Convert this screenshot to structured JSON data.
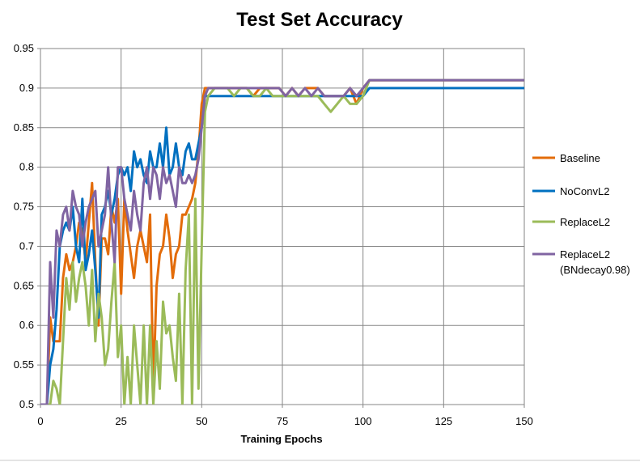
{
  "chart_data": {
    "type": "line",
    "title": "Test Set Accuracy",
    "xlabel": "Training Epochs",
    "ylabel": "",
    "xlim": [
      0,
      150
    ],
    "ylim": [
      0.5,
      0.95
    ],
    "x_ticks": [
      0,
      25,
      50,
      75,
      100,
      125,
      150
    ],
    "x_tick_labels": [
      "0",
      "25",
      "50",
      "75",
      "100",
      "125",
      "150"
    ],
    "y_ticks": [
      0.5,
      0.55,
      0.6,
      0.65,
      0.7,
      0.75,
      0.8,
      0.85,
      0.9,
      0.95
    ],
    "y_tick_labels": [
      "0.5",
      "0.55",
      "0.6",
      "0.65",
      "0.7",
      "0.75",
      "0.8",
      "0.85",
      "0.9",
      "0.95"
    ],
    "grid": true,
    "legend_position": "right",
    "series": [
      {
        "name": "Baseline",
        "color": "#E36C0A",
        "x": [
          0,
          2,
          3,
          4,
          5,
          6,
          7,
          8,
          9,
          10,
          11,
          12,
          13,
          14,
          15,
          16,
          17,
          18,
          19,
          20,
          21,
          22,
          23,
          24,
          25,
          26,
          27,
          28,
          29,
          30,
          31,
          32,
          33,
          34,
          35,
          36,
          37,
          38,
          39,
          40,
          41,
          42,
          43,
          44,
          45,
          46,
          47,
          48,
          49,
          50,
          51,
          52,
          54,
          56,
          58,
          60,
          62,
          64,
          66,
          68,
          70,
          72,
          74,
          76,
          78,
          80,
          82,
          84,
          86,
          88,
          90,
          92,
          94,
          96,
          98,
          100,
          102,
          105,
          110,
          115,
          120,
          125,
          130,
          135,
          140,
          145,
          150
        ],
        "values": [
          0.5,
          0.5,
          0.61,
          0.58,
          0.58,
          0.58,
          0.66,
          0.69,
          0.67,
          0.68,
          0.7,
          0.73,
          0.72,
          0.68,
          0.73,
          0.78,
          0.68,
          0.6,
          0.71,
          0.71,
          0.69,
          0.75,
          0.73,
          0.76,
          0.64,
          0.76,
          0.72,
          0.69,
          0.66,
          0.7,
          0.72,
          0.7,
          0.68,
          0.74,
          0.52,
          0.65,
          0.69,
          0.7,
          0.74,
          0.71,
          0.66,
          0.69,
          0.7,
          0.74,
          0.74,
          0.75,
          0.76,
          0.78,
          0.82,
          0.88,
          0.9,
          0.9,
          0.9,
          0.9,
          0.9,
          0.9,
          0.9,
          0.9,
          0.89,
          0.9,
          0.9,
          0.9,
          0.9,
          0.89,
          0.9,
          0.89,
          0.9,
          0.9,
          0.9,
          0.89,
          0.89,
          0.89,
          0.89,
          0.9,
          0.88,
          0.9,
          0.91,
          0.91,
          0.91,
          0.91,
          0.91,
          0.91,
          0.91,
          0.91,
          0.91,
          0.91,
          0.91
        ]
      },
      {
        "name": "NoConvL2",
        "color": "#0070C0",
        "x": [
          0,
          2,
          3,
          4,
          5,
          6,
          7,
          8,
          9,
          10,
          11,
          12,
          13,
          14,
          15,
          16,
          17,
          18,
          19,
          20,
          21,
          22,
          23,
          24,
          25,
          26,
          27,
          28,
          29,
          30,
          31,
          32,
          33,
          34,
          35,
          36,
          37,
          38,
          39,
          40,
          41,
          42,
          43,
          44,
          45,
          46,
          47,
          48,
          49,
          50,
          51,
          52,
          54,
          56,
          58,
          60,
          62,
          64,
          66,
          68,
          70,
          72,
          74,
          76,
          78,
          80,
          82,
          84,
          86,
          88,
          90,
          92,
          94,
          96,
          98,
          100,
          102,
          105,
          110,
          115,
          120,
          125,
          130,
          135,
          140,
          145,
          150
        ],
        "values": [
          0.5,
          0.5,
          0.55,
          0.57,
          0.62,
          0.7,
          0.72,
          0.73,
          0.72,
          0.75,
          0.7,
          0.68,
          0.76,
          0.67,
          0.69,
          0.72,
          0.67,
          0.61,
          0.74,
          0.75,
          0.77,
          0.74,
          0.76,
          0.79,
          0.8,
          0.79,
          0.8,
          0.77,
          0.82,
          0.8,
          0.81,
          0.79,
          0.78,
          0.82,
          0.8,
          0.8,
          0.83,
          0.8,
          0.85,
          0.79,
          0.8,
          0.83,
          0.8,
          0.79,
          0.82,
          0.83,
          0.81,
          0.81,
          0.83,
          0.85,
          0.89,
          0.89,
          0.89,
          0.89,
          0.89,
          0.89,
          0.89,
          0.89,
          0.89,
          0.89,
          0.89,
          0.89,
          0.89,
          0.89,
          0.89,
          0.89,
          0.89,
          0.89,
          0.89,
          0.89,
          0.89,
          0.89,
          0.89,
          0.89,
          0.89,
          0.89,
          0.9,
          0.9,
          0.9,
          0.9,
          0.9,
          0.9,
          0.9,
          0.9,
          0.9,
          0.9,
          0.9
        ]
      },
      {
        "name": "ReplaceL2",
        "color": "#9BBB59",
        "x": [
          0,
          2,
          3,
          4,
          5,
          6,
          7,
          8,
          9,
          10,
          11,
          12,
          13,
          14,
          15,
          16,
          17,
          18,
          19,
          20,
          21,
          22,
          23,
          24,
          25,
          26,
          27,
          28,
          29,
          30,
          31,
          32,
          33,
          34,
          35,
          36,
          37,
          38,
          39,
          40,
          41,
          42,
          43,
          44,
          45,
          46,
          47,
          48,
          49,
          50,
          51,
          52,
          54,
          56,
          58,
          60,
          62,
          64,
          66,
          68,
          70,
          72,
          74,
          76,
          78,
          80,
          82,
          84,
          86,
          88,
          90,
          92,
          94,
          96,
          98,
          100,
          102,
          105,
          110,
          115,
          120,
          125,
          130,
          135,
          140,
          145,
          150
        ],
        "values": [
          0.5,
          0.5,
          0.5,
          0.53,
          0.52,
          0.5,
          0.58,
          0.66,
          0.62,
          0.68,
          0.63,
          0.66,
          0.68,
          0.65,
          0.6,
          0.67,
          0.58,
          0.64,
          0.61,
          0.55,
          0.57,
          0.63,
          0.68,
          0.56,
          0.6,
          0.5,
          0.56,
          0.5,
          0.6,
          0.55,
          0.5,
          0.6,
          0.5,
          0.6,
          0.5,
          0.58,
          0.52,
          0.63,
          0.59,
          0.6,
          0.56,
          0.53,
          0.64,
          0.5,
          0.67,
          0.74,
          0.5,
          0.76,
          0.52,
          0.7,
          0.87,
          0.89,
          0.9,
          0.9,
          0.9,
          0.89,
          0.9,
          0.9,
          0.89,
          0.89,
          0.9,
          0.89,
          0.89,
          0.89,
          0.89,
          0.89,
          0.89,
          0.89,
          0.89,
          0.88,
          0.87,
          0.88,
          0.89,
          0.88,
          0.88,
          0.89,
          0.91,
          0.91,
          0.91,
          0.91,
          0.91,
          0.91,
          0.91,
          0.91,
          0.91,
          0.91,
          0.91
        ]
      },
      {
        "name": "ReplaceL2 (BNdecay0.98)",
        "name_lines": [
          "ReplaceL2",
          "(BNdecay0.98)"
        ],
        "color": "#8064A2",
        "x": [
          0,
          2,
          3,
          4,
          5,
          6,
          7,
          8,
          9,
          10,
          11,
          12,
          13,
          14,
          15,
          16,
          17,
          18,
          19,
          20,
          21,
          22,
          23,
          24,
          25,
          26,
          27,
          28,
          29,
          30,
          31,
          32,
          33,
          34,
          35,
          36,
          37,
          38,
          39,
          40,
          41,
          42,
          43,
          44,
          45,
          46,
          47,
          48,
          49,
          50,
          51,
          52,
          54,
          56,
          58,
          60,
          62,
          64,
          66,
          68,
          70,
          72,
          74,
          76,
          78,
          80,
          82,
          84,
          86,
          88,
          90,
          92,
          94,
          96,
          98,
          100,
          102,
          105,
          110,
          115,
          120,
          125,
          130,
          135,
          140,
          145,
          150
        ],
        "values": [
          0.5,
          0.5,
          0.68,
          0.61,
          0.72,
          0.7,
          0.74,
          0.75,
          0.72,
          0.77,
          0.75,
          0.74,
          0.7,
          0.73,
          0.75,
          0.76,
          0.77,
          0.7,
          0.72,
          0.74,
          0.8,
          0.73,
          0.68,
          0.8,
          0.8,
          0.76,
          0.74,
          0.72,
          0.77,
          0.74,
          0.72,
          0.78,
          0.8,
          0.76,
          0.8,
          0.79,
          0.76,
          0.8,
          0.78,
          0.79,
          0.77,
          0.75,
          0.8,
          0.78,
          0.78,
          0.79,
          0.78,
          0.79,
          0.81,
          0.85,
          0.89,
          0.9,
          0.9,
          0.9,
          0.9,
          0.9,
          0.9,
          0.9,
          0.9,
          0.9,
          0.9,
          0.9,
          0.9,
          0.89,
          0.9,
          0.89,
          0.9,
          0.89,
          0.9,
          0.89,
          0.89,
          0.89,
          0.89,
          0.9,
          0.89,
          0.9,
          0.91,
          0.91,
          0.91,
          0.91,
          0.91,
          0.91,
          0.91,
          0.91,
          0.91,
          0.91,
          0.91
        ]
      }
    ]
  }
}
